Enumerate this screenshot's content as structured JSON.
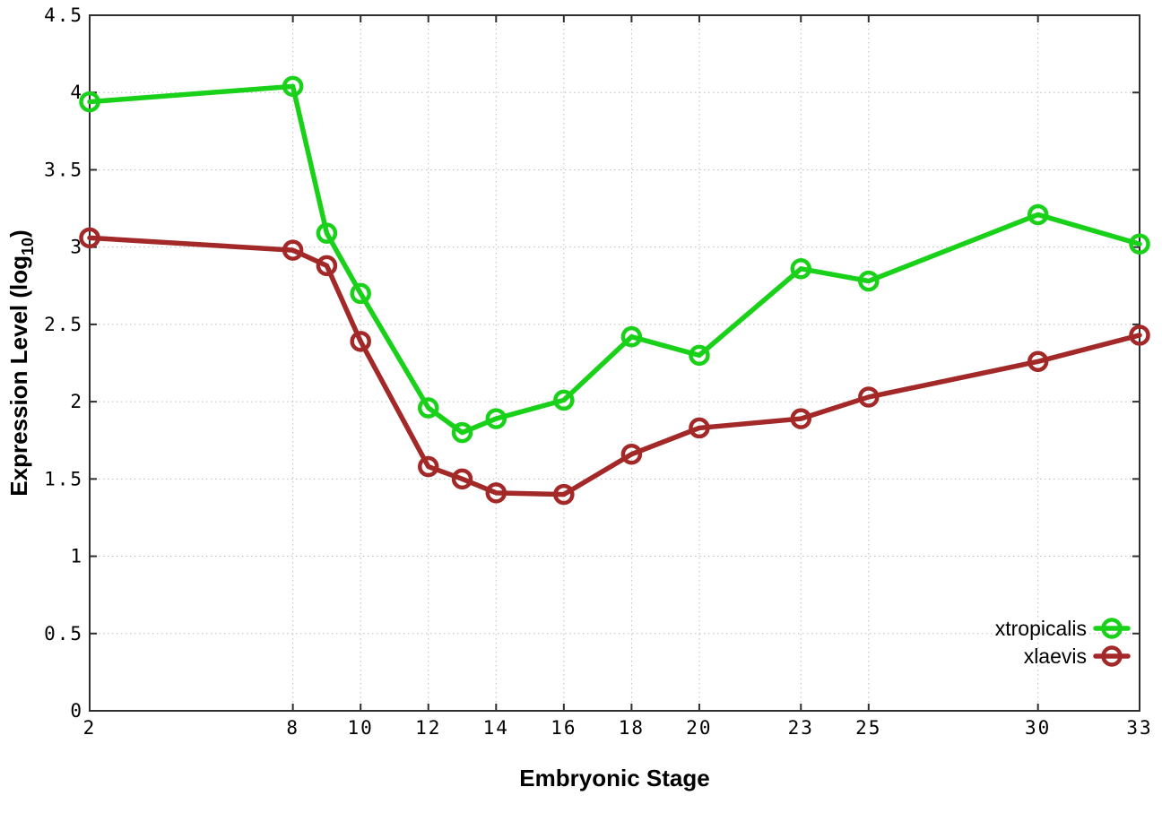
{
  "chart_data": {
    "type": "line",
    "title": "",
    "xlabel": "Embryonic Stage",
    "ylabel": "Expression Level (log10)",
    "ylabel_segments": [
      {
        "t": "Expression Level (log",
        "sub": false
      },
      {
        "t": "10",
        "sub": true
      },
      {
        "t": ")",
        "sub": false
      }
    ],
    "x": [
      2,
      8,
      9,
      10,
      12,
      13,
      14,
      16,
      18,
      20,
      23,
      25,
      30,
      33
    ],
    "series": [
      {
        "name": "xtropicalis",
        "color": "#19d119",
        "values": [
          3.94,
          4.04,
          3.09,
          2.7,
          1.96,
          1.8,
          1.89,
          2.01,
          2.42,
          2.3,
          2.86,
          2.78,
          3.21,
          3.02
        ]
      },
      {
        "name": "xlaevis",
        "color": "#a32828",
        "values": [
          3.06,
          2.98,
          2.88,
          2.39,
          1.58,
          1.5,
          1.41,
          1.4,
          1.66,
          1.83,
          1.89,
          2.03,
          2.26,
          2.43
        ]
      }
    ],
    "xticks": [
      2,
      8,
      10,
      12,
      14,
      16,
      18,
      20,
      23,
      25,
      30,
      33
    ],
    "yticks": [
      0,
      0.5,
      1,
      1.5,
      2,
      2.5,
      3,
      3.5,
      4,
      4.5
    ],
    "xlim": [
      2,
      33
    ],
    "ylim": [
      0,
      4.5
    ],
    "grid": true,
    "grid_style": "dotted",
    "legend_position": "bottom-right",
    "marker": "open-circle",
    "colors": {
      "background": "#ffffff",
      "axis": "#2e2e2e",
      "gridline": "#bdbdbd",
      "text": "#000000"
    }
  }
}
